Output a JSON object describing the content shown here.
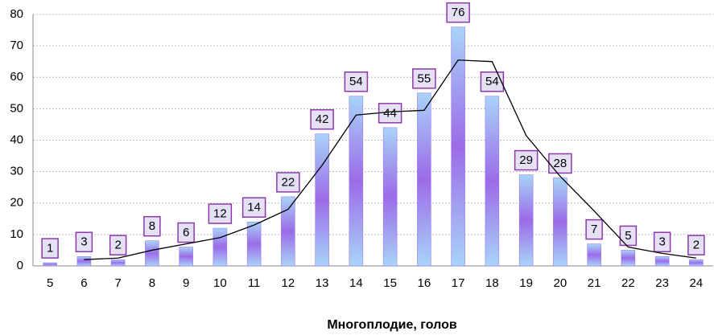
{
  "chart_data": {
    "type": "bar",
    "x_label": "Многоплодие, голов",
    "categories": [
      "5",
      "6",
      "7",
      "8",
      "9",
      "10",
      "11",
      "12",
      "13",
      "14",
      "15",
      "16",
      "17",
      "18",
      "19",
      "20",
      "21",
      "22",
      "23",
      "24"
    ],
    "series": [
      {
        "color": "#9b6be8",
        "values": [
          1,
          3,
          2,
          8,
          6,
          12,
          14,
          22,
          42,
          54,
          44,
          55,
          76,
          54,
          29,
          28,
          7,
          5,
          3,
          2
        ]
      },
      {
        "type": "line",
        "color": "#000000",
        "values": [
          null,
          2,
          2.5,
          5,
          7,
          9,
          13,
          18,
          32,
          48,
          49,
          49.5,
          65.5,
          65,
          41.5,
          28.5,
          17.5,
          6,
          4,
          2.5
        ]
      }
    ],
    "ylim": [
      0,
      80
    ],
    "yticks": [
      0,
      10,
      20,
      30,
      40,
      50,
      60,
      70,
      80
    ],
    "grid": true
  }
}
